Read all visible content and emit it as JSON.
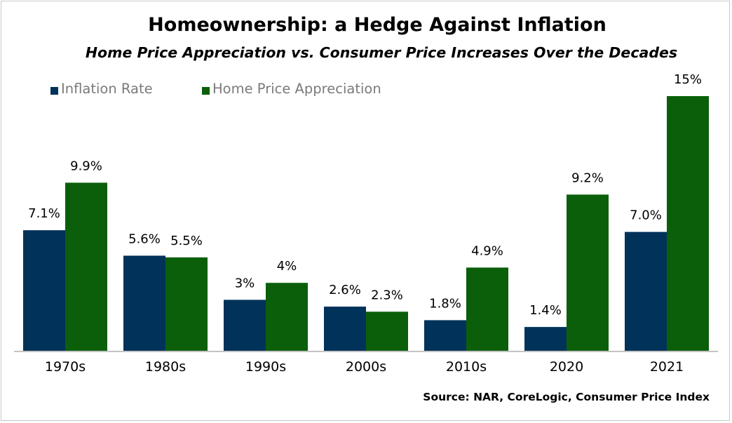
{
  "chart_data": {
    "type": "bar",
    "title": "Homeownership: a Hedge Against Inflation",
    "subtitle": "Home Price Appreciation vs. Consumer Price Increases Over the Decades",
    "categories": [
      "1970s",
      "1980s",
      "1990s",
      "2000s",
      "2010s",
      "2020",
      "2021"
    ],
    "series": [
      {
        "name": "Inflation Rate",
        "color": "#00325a",
        "values": [
          7.1,
          5.6,
          3.0,
          2.6,
          1.8,
          1.4,
          7.0
        ],
        "labels": [
          "7.1%",
          "5.6%",
          "3%",
          "2.6%",
          "1.8%",
          "1.4%",
          "7.0%"
        ]
      },
      {
        "name": "Home Price Appreciation",
        "color": "#0b5f0b",
        "values": [
          9.9,
          5.5,
          4.0,
          2.3,
          4.9,
          9.2,
          15.0
        ],
        "labels": [
          "9.9%",
          "5.5%",
          "4%",
          "2.3%",
          "4.9%",
          "9.2%",
          "15%"
        ]
      }
    ],
    "ylim": [
      0,
      15
    ],
    "xlabel": "",
    "ylabel": "",
    "grid": false,
    "legend_position": "top-left",
    "source": "Source: NAR, CoreLogic, Consumer Price Index"
  }
}
